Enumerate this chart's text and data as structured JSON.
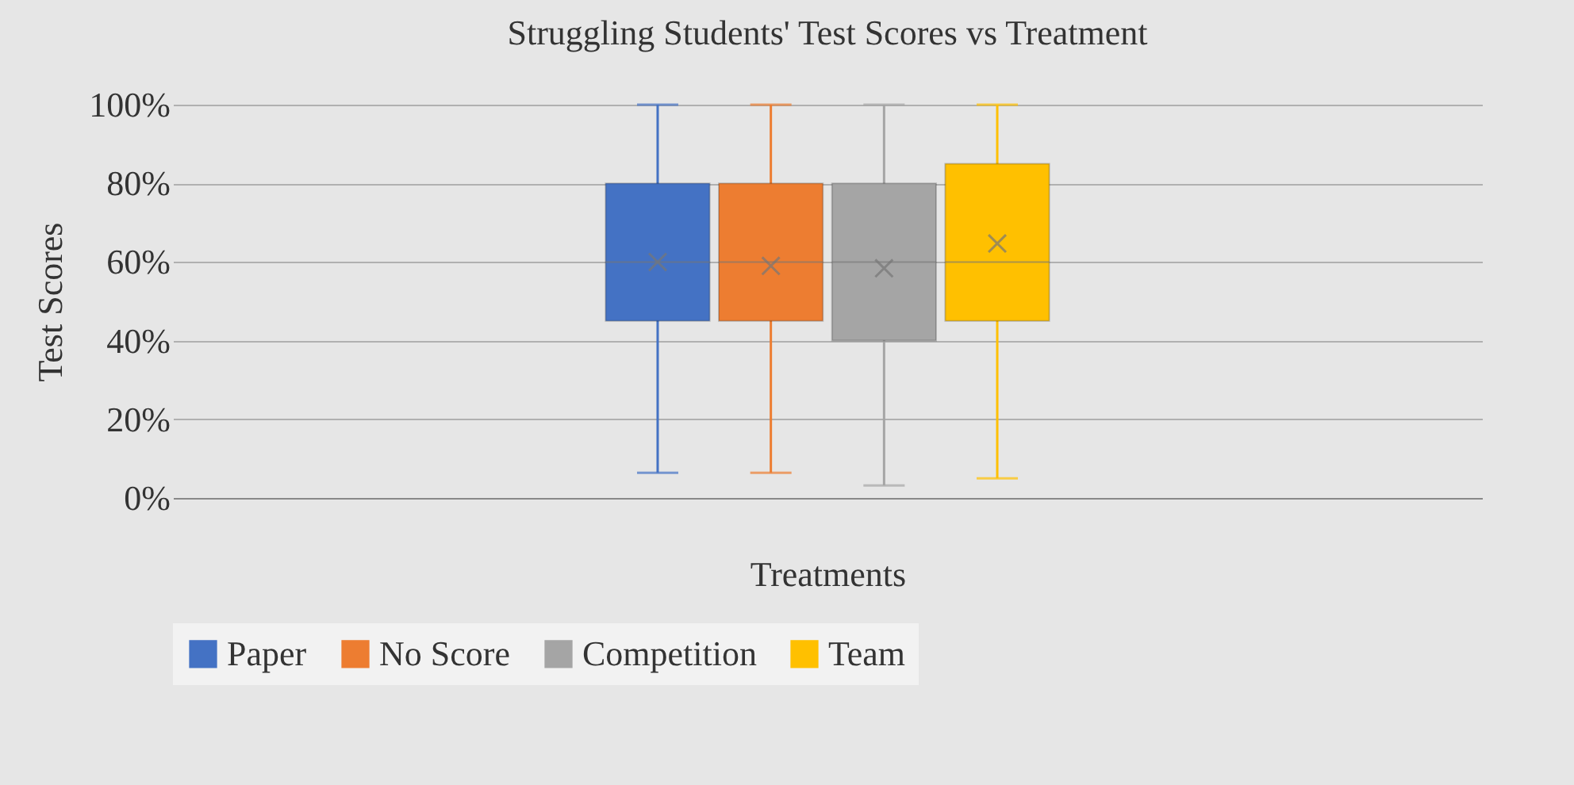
{
  "chart_data": {
    "type": "box",
    "title": "Struggling Students' Test Scores vs Treatment",
    "xlabel": "Treatments",
    "ylabel": "Test Scores",
    "categories": [
      null
    ],
    "series": [
      {
        "name": "Paper",
        "color": "#4472c4",
        "boxes": [
          {
            "low": 6.4,
            "q1": 45,
            "median": 60,
            "q3": 80,
            "high": 100,
            "mean": 60
          }
        ]
      },
      {
        "name": "No Score",
        "color": "#ed7d31",
        "boxes": [
          {
            "low": 6.4,
            "q1": 45,
            "median": 60,
            "q3": 80,
            "high": 100,
            "mean": 59
          }
        ]
      },
      {
        "name": "Competition",
        "color": "#a5a5a5",
        "boxes": [
          {
            "low": 3.2,
            "q1": 40,
            "median": 60,
            "q3": 80,
            "high": 100,
            "mean": 58.4
          }
        ]
      },
      {
        "name": "Team",
        "color": "#ffc000",
        "boxes": [
          {
            "low": 5,
            "q1": 45,
            "median": 60,
            "q3": 85,
            "high": 100,
            "mean": 64.7
          }
        ]
      }
    ],
    "ylim": [
      0,
      100
    ],
    "yticks": [
      {
        "value": 0,
        "label": "0%"
      },
      {
        "value": 20,
        "label": "20%"
      },
      {
        "value": 40,
        "label": "40%"
      },
      {
        "value": 60,
        "label": "60%"
      },
      {
        "value": 80,
        "label": "80%"
      },
      {
        "value": 100,
        "label": "100%"
      }
    ],
    "grid": "y",
    "legend": "bottom"
  }
}
